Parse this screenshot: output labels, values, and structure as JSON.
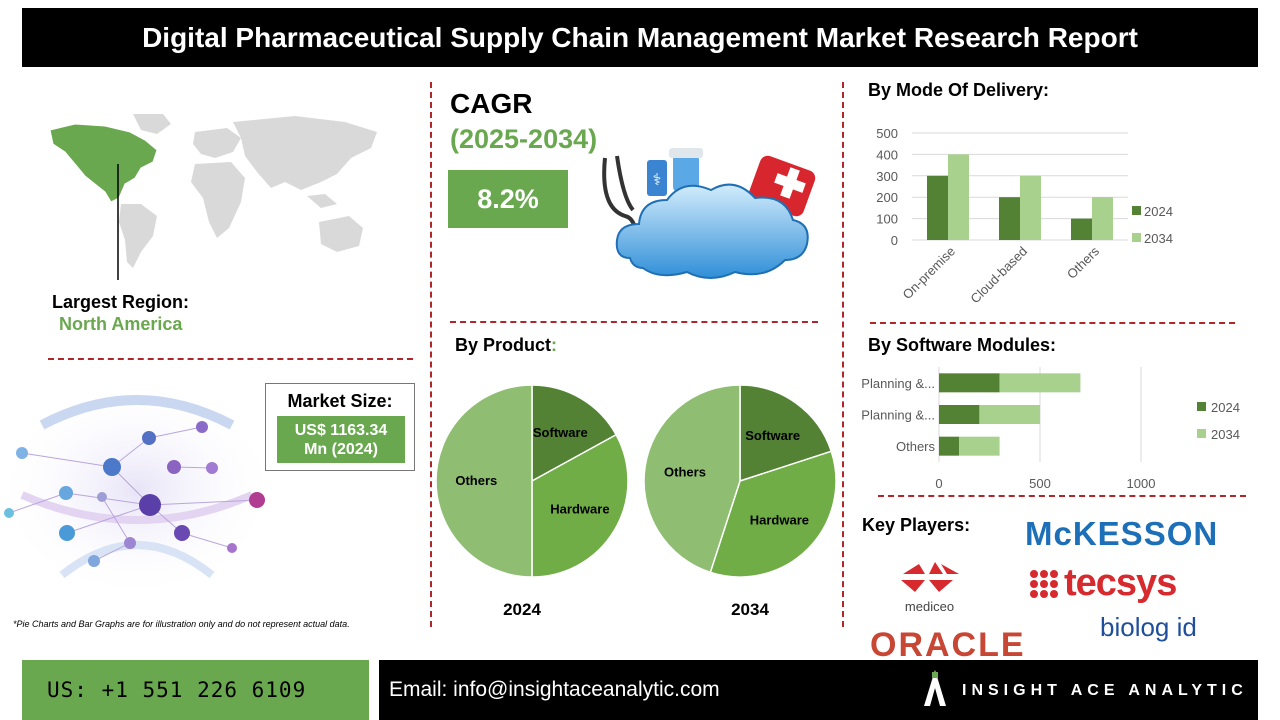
{
  "header": {
    "title": "Digital Pharmaceutical Supply Chain Management Market Research Report"
  },
  "region": {
    "label": "Largest Region:",
    "value": "North America"
  },
  "cagr": {
    "label": "CAGR",
    "period": "(2025-2034)",
    "value": "8.2%"
  },
  "market_size": {
    "label": "Market Size:",
    "value_line1": "US$ 1163.34",
    "value_line2": "Mn (2024)"
  },
  "note": "*Pie Charts and Bar Graphs are for illustration only and do not represent actual data.",
  "sections": {
    "delivery": "By Mode Of Delivery:",
    "product": "By Product",
    "product_colon": ":",
    "modules": "By Software Modules:",
    "players": "Key Players:"
  },
  "colors": {
    "dark_green": "#548235",
    "mid_green": "#70ad47",
    "light_green": "#a9d18e",
    "pie_light": "#8fbd71",
    "accent_red": "#b0262b"
  },
  "chart_data": [
    {
      "type": "bar",
      "title": "By Mode Of Delivery:",
      "categories": [
        "On-premise",
        "Cloud-based",
        "Others"
      ],
      "series": [
        {
          "name": "2024",
          "values": [
            300,
            200,
            100
          ],
          "color": "#548235"
        },
        {
          "name": "2034",
          "values": [
            400,
            300,
            200
          ],
          "color": "#a9d18e"
        }
      ],
      "ylim": [
        0,
        500
      ],
      "yticks": [
        0,
        100,
        200,
        300,
        400,
        500
      ],
      "legend": "right",
      "grid": true
    },
    {
      "type": "bar",
      "orientation": "horizontal",
      "stacked": true,
      "title": "By Software Modules:",
      "categories": [
        "Planning &...",
        "Planning &...",
        "Others"
      ],
      "series": [
        {
          "name": "2024",
          "values": [
            300,
            200,
            100
          ],
          "color": "#548235"
        },
        {
          "name": "2034",
          "values": [
            400,
            300,
            200
          ],
          "color": "#a9d18e"
        }
      ],
      "xlim": [
        0,
        1000
      ],
      "xticks": [
        0,
        500,
        1000
      ],
      "legend": "right",
      "grid": true
    },
    {
      "type": "pie",
      "title": "2024",
      "slices": [
        {
          "label": "Software",
          "value": 17,
          "color": "#548235"
        },
        {
          "label": "Hardware",
          "value": 33,
          "color": "#70ad47"
        },
        {
          "label": "Others",
          "value": 50,
          "color": "#8fbd71"
        }
      ]
    },
    {
      "type": "pie",
      "title": "2034",
      "slices": [
        {
          "label": "Software",
          "value": 20,
          "color": "#548235"
        },
        {
          "label": "Hardware",
          "value": 35,
          "color": "#70ad47"
        },
        {
          "label": "Others",
          "value": 45,
          "color": "#8fbd71"
        }
      ]
    }
  ],
  "key_players": [
    "McKESSON",
    "mediceo",
    "tecsys",
    "ORACLE",
    "biolog id"
  ],
  "footer": {
    "phone": "US: +1 551 226 6109",
    "email": "Email: info@insightaceanalytic.com",
    "brand": "INSIGHT ACE ANALYTIC"
  }
}
